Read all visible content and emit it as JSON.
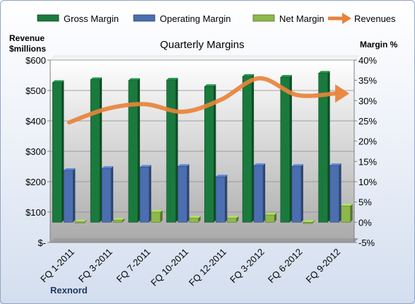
{
  "legend": [
    {
      "label": "Gross Margin",
      "color": "#1a7a3d",
      "shape": "bar"
    },
    {
      "label": "Operating Margin",
      "color": "#4a6eb0",
      "shape": "bar"
    },
    {
      "label": "Net Margin",
      "color": "#8db84a",
      "shape": "bar"
    },
    {
      "label": "Revenues",
      "color": "#e8833a",
      "shape": "arrow-line"
    }
  ],
  "left_axis_title": [
    "Revenue",
    "$millions"
  ],
  "right_axis_title": "Margin %",
  "footer": "Rexnord",
  "chart_data": {
    "type": "bar",
    "title": "Quarterly Margins",
    "categories": [
      "FQ 1-2011",
      "FQ 3-2011",
      "FQ 7-2011",
      "FQ 10-2011",
      "FQ 12-2011",
      "FQ 3-2012",
      "FQ 6-2012",
      "FQ 9-2012"
    ],
    "left_axis": {
      "label": "Revenue $millions",
      "ticks": [
        "$-",
        "$100",
        "$200",
        "$300",
        "$400",
        "$500",
        "$600"
      ],
      "ylim": [
        0,
        600
      ]
    },
    "right_axis": {
      "label": "Margin %",
      "ticks": [
        "-5%",
        "0%",
        "5%",
        "10%",
        "15%",
        "20%",
        "25%",
        "30%",
        "35%",
        "40%"
      ],
      "ylim": [
        -5,
        40
      ]
    },
    "series": [
      {
        "name": "Gross Margin",
        "type": "bar",
        "axis": "right",
        "color": "#1a7a3d",
        "values": [
          34.5,
          35.2,
          35.0,
          35.1,
          33.5,
          36.0,
          35.8,
          36.8
        ]
      },
      {
        "name": "Operating Margin",
        "type": "bar",
        "axis": "right",
        "color": "#4a6eb0",
        "values": [
          12.8,
          13.3,
          13.6,
          13.8,
          11.2,
          14.0,
          13.8,
          14.0
        ]
      },
      {
        "name": "Net Margin",
        "type": "bar",
        "axis": "right",
        "color": "#8db84a",
        "values": [
          0.1,
          0.5,
          2.5,
          1.0,
          1.0,
          1.8,
          -0.3,
          4.0
        ]
      },
      {
        "name": "Revenues",
        "type": "line",
        "axis": "left",
        "color": "#e8833a",
        "values": [
          395,
          440,
          455,
          430,
          470,
          540,
          485,
          490
        ]
      }
    ],
    "grid": true,
    "legend_position": "top"
  }
}
